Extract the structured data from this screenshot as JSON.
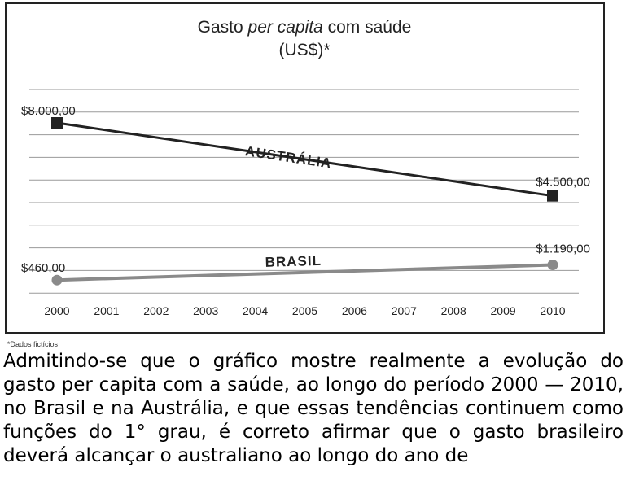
{
  "chart_data": {
    "type": "line",
    "title_line1_pre": "Gasto ",
    "title_line1_italic": "per capita",
    "title_line1_post": " com saúde",
    "title_line2": "(US$)*",
    "categories": [
      "2000",
      "2001",
      "2002",
      "2003",
      "2004",
      "2005",
      "2006",
      "2007",
      "2008",
      "2009",
      "2010"
    ],
    "ylim": [
      0,
      9600
    ],
    "grid": true,
    "series": [
      {
        "name": "AUSTRÁLIA",
        "color": "#222222",
        "marker": "square",
        "x": [
          "2000",
          "2010"
        ],
        "values": [
          8000,
          4500
        ],
        "labels": [
          "$8.000,00",
          "$4.500,00"
        ]
      },
      {
        "name": "BRASIL",
        "color": "#8a8a8a",
        "marker": "circle",
        "x": [
          "2000",
          "2010"
        ],
        "values": [
          460,
          1190
        ],
        "labels": [
          "$460,00",
          "$1.190,00"
        ]
      }
    ]
  },
  "footnote": "*Dados fictícios",
  "question": "Admitindo-se que o gráfico mostre realmente a evolução do gasto per capita com a saúde, ao longo do período 2000 — 2010, no Brasil e na Austrália, e que essas tendências continuem como funções do 1° grau, é correto afirmar que o gasto brasileiro deverá alcançar o australiano ao longo do ano de"
}
